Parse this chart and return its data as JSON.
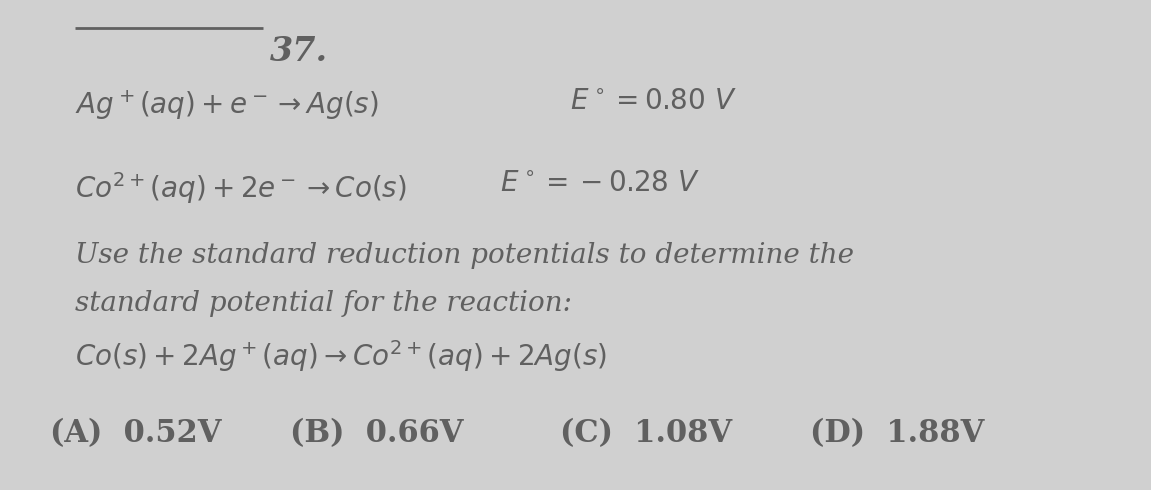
{
  "background_color": "#d0d0d0",
  "text_color": "#606060",
  "number": "37.",
  "line1_left": "$Ag^+(aq) + e^- \\rightarrow Ag(s)$",
  "line1_right": "$E^\\circ = 0.80\\ V$",
  "line2_left": "$Co^{2+}(aq) + 2e^- \\rightarrow Co(s)$",
  "line2_right": "$E^\\circ = -0.28\\ V$",
  "desc1": "Use the standard reduction potentials to determine the",
  "desc2": "standard potential for the reaction:",
  "reaction": "$Co(s) + 2Ag^+(aq) \\rightarrow Co^{2+}(aq) + 2Ag(s)$",
  "ans_A": "(A)  0.52V",
  "ans_B": "(B)  0.66V",
  "ans_C": "(C)  1.08V",
  "ans_D": "(D)  1.88V",
  "fs_main": 20,
  "fs_eq": 20,
  "fs_num": 24,
  "fs_ans": 22
}
